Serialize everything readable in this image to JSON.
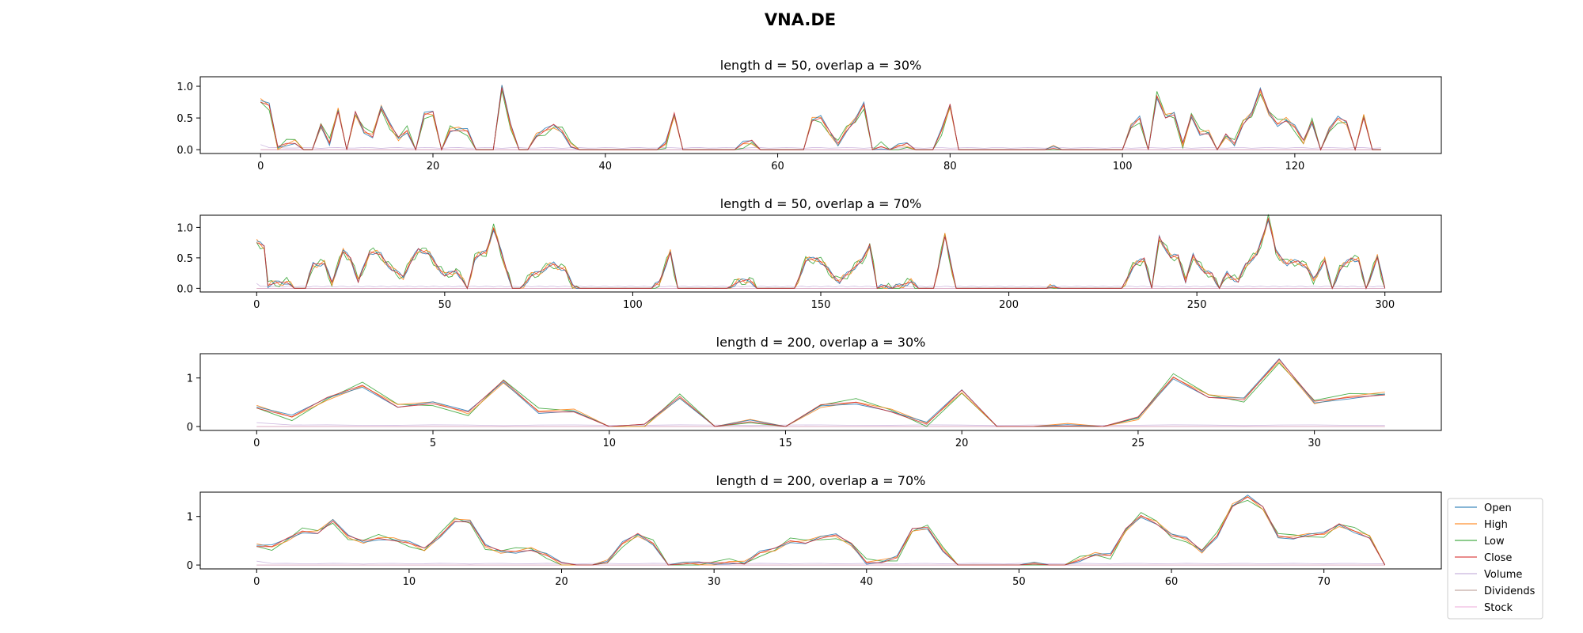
{
  "figure": {
    "title": "VNA.DE"
  },
  "series_names": [
    "Open",
    "High",
    "Low",
    "Close",
    "Volume",
    "Dividends",
    "Stock"
  ],
  "series_colors": [
    "#1f77b4",
    "#ff7f0e",
    "#2ca02c",
    "#d62728",
    "#9467bd",
    "#8c564b",
    "#e377c2"
  ],
  "legend": {
    "placement": "right-of-last-subplot"
  },
  "chart_data": [
    {
      "type": "line",
      "title": "length d = 50, overlap a = 30%",
      "xlim": [
        -7,
        137
      ],
      "ylim": [
        -0.06,
        1.15
      ],
      "xticks": [
        0,
        20,
        40,
        60,
        80,
        100,
        120
      ],
      "yticks": [
        0.0,
        0.5,
        1.0
      ],
      "ytick_labels": [
        "0.0",
        "0.5",
        "1.0"
      ],
      "x_count": 131,
      "close_keypoints": [
        [
          0,
          0.75
        ],
        [
          1,
          0.7
        ],
        [
          2,
          0.05
        ],
        [
          3,
          0.1
        ],
        [
          4,
          0.1
        ],
        [
          5,
          0.0
        ],
        [
          6,
          0.0
        ],
        [
          7,
          0.4
        ],
        [
          8,
          0.1
        ],
        [
          9,
          0.6
        ],
        [
          10,
          0.0
        ],
        [
          11,
          0.6
        ],
        [
          12,
          0.3
        ],
        [
          13,
          0.2
        ],
        [
          14,
          0.65
        ],
        [
          15,
          0.4
        ],
        [
          16,
          0.2
        ],
        [
          17,
          0.3
        ],
        [
          18,
          0.0
        ],
        [
          19,
          0.55
        ],
        [
          20,
          0.6
        ],
        [
          21,
          0.0
        ],
        [
          22,
          0.3
        ],
        [
          23,
          0.3
        ],
        [
          24,
          0.3
        ],
        [
          25,
          0.0
        ],
        [
          26,
          0.0
        ],
        [
          27,
          0.0
        ],
        [
          28,
          0.98
        ],
        [
          29,
          0.4
        ],
        [
          30,
          0.0
        ],
        [
          31,
          0.0
        ],
        [
          32,
          0.2
        ],
        [
          33,
          0.3
        ],
        [
          34,
          0.4
        ],
        [
          35,
          0.3
        ],
        [
          36,
          0.05
        ],
        [
          37,
          0.0
        ],
        [
          46,
          0.0
        ],
        [
          47,
          0.1
        ],
        [
          48,
          0.58
        ],
        [
          49,
          0.0
        ],
        [
          55,
          0.0
        ],
        [
          56,
          0.1
        ],
        [
          57,
          0.15
        ],
        [
          58,
          0.0
        ],
        [
          63,
          0.0
        ],
        [
          64,
          0.45
        ],
        [
          65,
          0.5
        ],
        [
          66,
          0.3
        ],
        [
          67,
          0.1
        ],
        [
          68,
          0.3
        ],
        [
          69,
          0.45
        ],
        [
          70,
          0.72
        ],
        [
          71,
          0.0
        ],
        [
          72,
          0.05
        ],
        [
          73,
          0.0
        ],
        [
          74,
          0.05
        ],
        [
          75,
          0.1
        ],
        [
          76,
          0.0
        ],
        [
          78,
          0.0
        ],
        [
          79,
          0.3
        ],
        [
          80,
          0.72
        ],
        [
          81,
          0.0
        ],
        [
          91,
          0.0
        ],
        [
          92,
          0.02
        ],
        [
          93,
          0.0
        ],
        [
          100,
          0.0
        ],
        [
          101,
          0.35
        ],
        [
          102,
          0.5
        ],
        [
          103,
          0.0
        ],
        [
          104,
          0.85
        ],
        [
          105,
          0.5
        ],
        [
          106,
          0.55
        ],
        [
          107,
          0.1
        ],
        [
          108,
          0.55
        ],
        [
          109,
          0.25
        ],
        [
          110,
          0.25
        ],
        [
          111,
          0.0
        ],
        [
          112,
          0.25
        ],
        [
          113,
          0.1
        ],
        [
          114,
          0.4
        ],
        [
          115,
          0.55
        ],
        [
          116,
          0.95
        ],
        [
          117,
          0.6
        ],
        [
          118,
          0.4
        ],
        [
          119,
          0.45
        ],
        [
          120,
          0.35
        ],
        [
          121,
          0.15
        ],
        [
          122,
          0.45
        ],
        [
          123,
          0.0
        ],
        [
          124,
          0.3
        ],
        [
          125,
          0.5
        ],
        [
          126,
          0.45
        ],
        [
          127,
          0.0
        ],
        [
          128,
          0.5
        ],
        [
          129,
          0.0
        ],
        [
          130,
          0.0
        ]
      ]
    },
    {
      "type": "line",
      "title": "length d = 50, overlap a = 70%",
      "xlim": [
        -15,
        315
      ],
      "ylim": [
        -0.06,
        1.2
      ],
      "xticks": [
        0,
        50,
        100,
        150,
        200,
        250,
        300
      ],
      "yticks": [
        0.0,
        0.5,
        1.0
      ],
      "ytick_labels": [
        "0.0",
        "0.5",
        "1.0"
      ],
      "x_count": 301,
      "close_keypoints": [
        [
          0,
          0.75
        ],
        [
          2,
          0.7
        ],
        [
          3,
          0.05
        ],
        [
          6,
          0.1
        ],
        [
          8,
          0.1
        ],
        [
          10,
          0.0
        ],
        [
          13,
          0.0
        ],
        [
          15,
          0.4
        ],
        [
          18,
          0.4
        ],
        [
          20,
          0.1
        ],
        [
          23,
          0.6
        ],
        [
          25,
          0.5
        ],
        [
          27,
          0.1
        ],
        [
          30,
          0.6
        ],
        [
          33,
          0.55
        ],
        [
          36,
          0.3
        ],
        [
          39,
          0.2
        ],
        [
          43,
          0.65
        ],
        [
          46,
          0.55
        ],
        [
          50,
          0.2
        ],
        [
          53,
          0.3
        ],
        [
          56,
          0.0
        ],
        [
          58,
          0.5
        ],
        [
          61,
          0.6
        ],
        [
          63,
          0.98
        ],
        [
          66,
          0.4
        ],
        [
          68,
          0.0
        ],
        [
          70,
          0.0
        ],
        [
          73,
          0.2
        ],
        [
          76,
          0.3
        ],
        [
          79,
          0.4
        ],
        [
          82,
          0.3
        ],
        [
          84,
          0.05
        ],
        [
          86,
          0.0
        ],
        [
          105,
          0.0
        ],
        [
          107,
          0.1
        ],
        [
          110,
          0.58
        ],
        [
          112,
          0.0
        ],
        [
          125,
          0.0
        ],
        [
          128,
          0.1
        ],
        [
          131,
          0.15
        ],
        [
          133,
          0.0
        ],
        [
          143,
          0.0
        ],
        [
          146,
          0.45
        ],
        [
          149,
          0.5
        ],
        [
          152,
          0.3
        ],
        [
          155,
          0.1
        ],
        [
          158,
          0.3
        ],
        [
          161,
          0.45
        ],
        [
          163,
          0.72
        ],
        [
          165,
          0.0
        ],
        [
          167,
          0.05
        ],
        [
          169,
          0.0
        ],
        [
          171,
          0.05
        ],
        [
          174,
          0.1
        ],
        [
          176,
          0.0
        ],
        [
          180,
          0.0
        ],
        [
          183,
          0.85
        ],
        [
          186,
          0.0
        ],
        [
          210,
          0.0
        ],
        [
          212,
          0.02
        ],
        [
          214,
          0.0
        ],
        [
          230,
          0.0
        ],
        [
          233,
          0.35
        ],
        [
          236,
          0.5
        ],
        [
          238,
          0.0
        ],
        [
          240,
          0.85
        ],
        [
          243,
          0.5
        ],
        [
          245,
          0.55
        ],
        [
          247,
          0.1
        ],
        [
          249,
          0.55
        ],
        [
          252,
          0.25
        ],
        [
          254,
          0.25
        ],
        [
          256,
          0.0
        ],
        [
          258,
          0.25
        ],
        [
          261,
          0.1
        ],
        [
          263,
          0.4
        ],
        [
          266,
          0.55
        ],
        [
          269,
          1.15
        ],
        [
          271,
          0.6
        ],
        [
          274,
          0.4
        ],
        [
          277,
          0.45
        ],
        [
          279,
          0.35
        ],
        [
          281,
          0.15
        ],
        [
          284,
          0.45
        ],
        [
          286,
          0.0
        ],
        [
          288,
          0.3
        ],
        [
          291,
          0.5
        ],
        [
          293,
          0.45
        ],
        [
          295,
          0.0
        ],
        [
          298,
          0.5
        ],
        [
          300,
          0.0
        ]
      ]
    },
    {
      "type": "line",
      "title": "length d = 200, overlap a = 30%",
      "xlim": [
        -1.6,
        33.6
      ],
      "ylim": [
        -0.08,
        1.5
      ],
      "xticks": [
        0,
        5,
        10,
        15,
        20,
        25,
        30
      ],
      "yticks": [
        0,
        1
      ],
      "ytick_labels": [
        "0",
        "1"
      ],
      "x_count": 33,
      "close_keypoints": [
        [
          0,
          0.38
        ],
        [
          1,
          0.2
        ],
        [
          2,
          0.6
        ],
        [
          3,
          0.85
        ],
        [
          4,
          0.4
        ],
        [
          5,
          0.47
        ],
        [
          6,
          0.3
        ],
        [
          7,
          0.95
        ],
        [
          8,
          0.3
        ],
        [
          9,
          0.3
        ],
        [
          10,
          0.0
        ],
        [
          11,
          0.05
        ],
        [
          12,
          0.62
        ],
        [
          13,
          0.0
        ],
        [
          14,
          0.1
        ],
        [
          15,
          0.0
        ],
        [
          16,
          0.45
        ],
        [
          17,
          0.5
        ],
        [
          18,
          0.3
        ],
        [
          19,
          0.05
        ],
        [
          20,
          0.75
        ],
        [
          21,
          0.0
        ],
        [
          22,
          0.0
        ],
        [
          23,
          0.01
        ],
        [
          24,
          0.0
        ],
        [
          25,
          0.2
        ],
        [
          26,
          1.02
        ],
        [
          27,
          0.6
        ],
        [
          28,
          0.55
        ],
        [
          29,
          1.38
        ],
        [
          30,
          0.52
        ],
        [
          31,
          0.6
        ],
        [
          32,
          0.65
        ]
      ]
    },
    {
      "type": "line",
      "title": "length d = 200, overlap a = 70%",
      "xlim": [
        -3.7,
        77.7
      ],
      "ylim": [
        -0.08,
        1.5
      ],
      "xticks": [
        0,
        10,
        20,
        30,
        40,
        50,
        60,
        70
      ],
      "yticks": [
        0,
        1
      ],
      "ytick_labels": [
        "0",
        "1"
      ],
      "x_count": 75,
      "close_keypoints": [
        [
          0,
          0.38
        ],
        [
          1,
          0.38
        ],
        [
          2,
          0.55
        ],
        [
          3,
          0.7
        ],
        [
          4,
          0.65
        ],
        [
          5,
          0.9
        ],
        [
          6,
          0.6
        ],
        [
          7,
          0.5
        ],
        [
          8,
          0.55
        ],
        [
          9,
          0.5
        ],
        [
          10,
          0.45
        ],
        [
          11,
          0.35
        ],
        [
          12,
          0.6
        ],
        [
          13,
          0.9
        ],
        [
          14,
          0.88
        ],
        [
          15,
          0.4
        ],
        [
          16,
          0.3
        ],
        [
          17,
          0.28
        ],
        [
          18,
          0.3
        ],
        [
          19,
          0.2
        ],
        [
          20,
          0.05
        ],
        [
          21,
          0.0
        ],
        [
          22,
          0.0
        ],
        [
          23,
          0.05
        ],
        [
          24,
          0.45
        ],
        [
          25,
          0.65
        ],
        [
          26,
          0.45
        ],
        [
          27,
          0.0
        ],
        [
          28,
          0.02
        ],
        [
          29,
          0.05
        ],
        [
          30,
          0.05
        ],
        [
          31,
          0.05
        ],
        [
          32,
          0.02
        ],
        [
          33,
          0.25
        ],
        [
          34,
          0.35
        ],
        [
          35,
          0.5
        ],
        [
          36,
          0.45
        ],
        [
          37,
          0.55
        ],
        [
          38,
          0.62
        ],
        [
          39,
          0.45
        ],
        [
          40,
          0.05
        ],
        [
          41,
          0.05
        ],
        [
          42,
          0.15
        ],
        [
          43,
          0.75
        ],
        [
          44,
          0.78
        ],
        [
          45,
          0.3
        ],
        [
          46,
          0.0
        ],
        [
          50,
          0.0
        ],
        [
          51,
          0.02
        ],
        [
          52,
          0.0
        ],
        [
          53,
          0.0
        ],
        [
          54,
          0.1
        ],
        [
          55,
          0.2
        ],
        [
          56,
          0.2
        ],
        [
          57,
          0.75
        ],
        [
          58,
          1.02
        ],
        [
          59,
          0.85
        ],
        [
          60,
          0.6
        ],
        [
          61,
          0.55
        ],
        [
          62,
          0.3
        ],
        [
          63,
          0.6
        ],
        [
          64,
          1.2
        ],
        [
          65,
          1.4
        ],
        [
          66,
          1.2
        ],
        [
          67,
          0.6
        ],
        [
          68,
          0.55
        ],
        [
          69,
          0.6
        ],
        [
          70,
          0.65
        ],
        [
          71,
          0.85
        ],
        [
          72,
          0.7
        ],
        [
          73,
          0.55
        ],
        [
          74,
          0.0
        ]
      ]
    }
  ]
}
